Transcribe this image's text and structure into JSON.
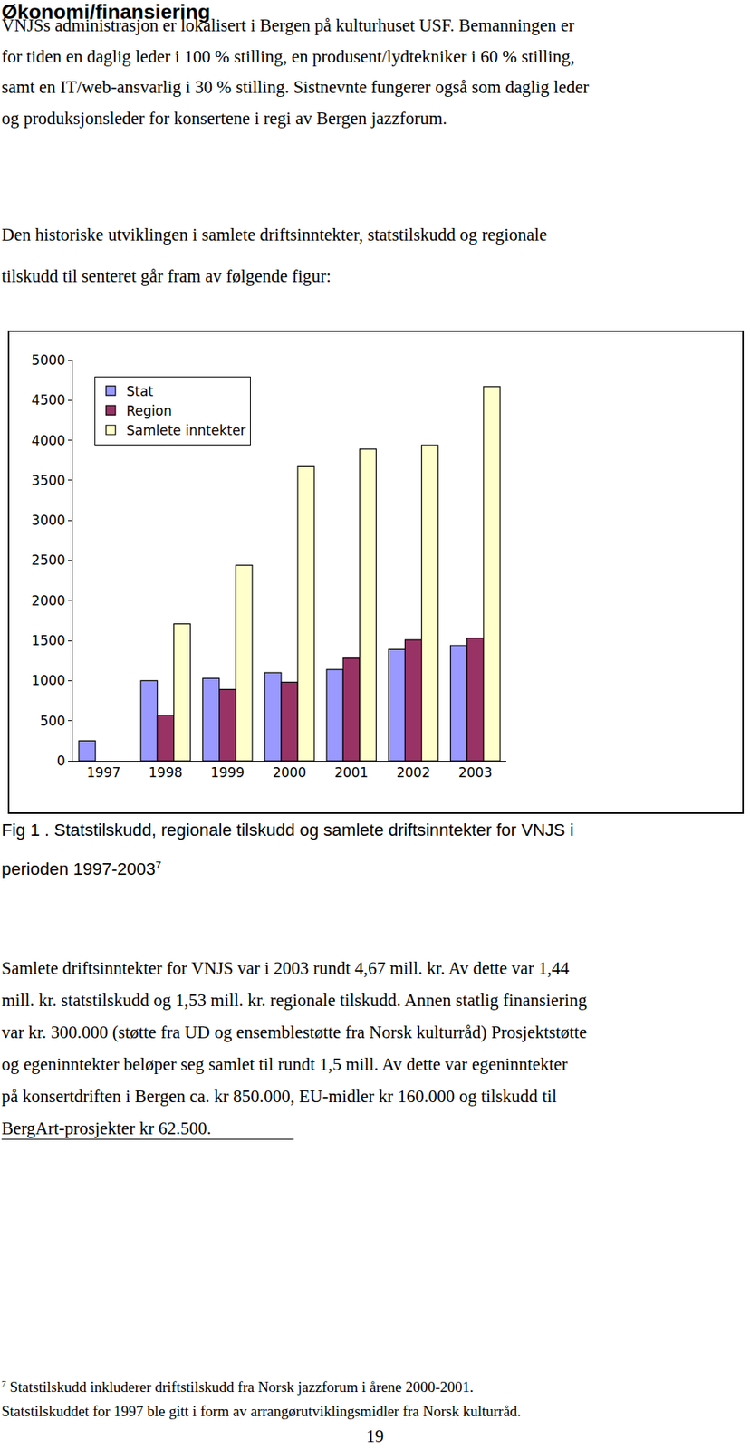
{
  "heading": "Økonomi/finansiering",
  "paragraphs": [
    [
      "VNJSs administrasjon er lokalisert i Bergen på kulturhuset USF. Bemanningen er",
      "for tiden en daglig leder i 100 % stilling, en produsent/lydtekniker i 60 % stilling,",
      "samt en IT/web-ansvarlig i 30 % stilling. Sistnevnte fungerer også som daglig leder",
      "og produksjonsleder for konsertene i regi av Bergen jazzforum."
    ],
    [
      "Den historiske utviklingen i samlete driftsinntekter, statstilskudd og regionale",
      "tilskudd til senteret går fram av følgende figur:"
    ],
    [
      "Samlete driftsinntekter for VNJS var i 2003 rundt 4,67 mill. kr.  Av dette var 1,44",
      "mill. kr. statstilskudd og 1,53 mill. kr. regionale tilskudd. Annen statlig finansiering",
      "var kr. 300.000 (støtte fra UD og ensemblestøtte fra Norsk kulturråd) Prosjektstøtte",
      "og egeninntekter beløper seg samlet til rundt 1,5 mill. Av dette var egeninntekter",
      "på konsertdriften i Bergen ca. kr 850.000, EU-midler kr 160.000 og tilskudd til",
      "BergArt-prosjekter kr 62.500."
    ]
  ],
  "chart_data": {
    "type": "bar",
    "categories": [
      "1997",
      "1998",
      "1999",
      "2000",
      "2001",
      "2002",
      "2003"
    ],
    "series": [
      {
        "name": "Stat",
        "color": "#9999ff",
        "values": [
          250,
          1000,
          1030,
          1100,
          1140,
          1390,
          1440
        ]
      },
      {
        "name": "Region",
        "color": "#993366",
        "values": [
          null,
          570,
          890,
          980,
          1280,
          1510,
          1530
        ]
      },
      {
        "name": "Samlete inntekter",
        "color": "#ffffcc",
        "values": [
          null,
          1710,
          2440,
          3670,
          3890,
          3940,
          4670
        ]
      }
    ],
    "ylim": [
      0,
      5000
    ],
    "yticks": [
      0,
      500,
      1000,
      1500,
      2000,
      2500,
      3000,
      3500,
      4000,
      4500,
      5000
    ],
    "grid": false,
    "legend": "top-left",
    "data_labels": false
  },
  "caption": {
    "lines": [
      "Fig 1 . Statstilskudd, regionale tilskudd og samlete driftsinntekter for VNJS i",
      "perioden 1997-2003"
    ],
    "footnote_ref": "7"
  },
  "footnote": {
    "marker": "7",
    "lines": [
      "Statstilskudd inkluderer driftstilskudd fra Norsk jazzforum i årene 2000-2001.",
      "Statstilskuddet for 1997 ble gitt i form av arrangørutviklingsmidler fra Norsk kulturråd."
    ]
  },
  "page_number": "19"
}
